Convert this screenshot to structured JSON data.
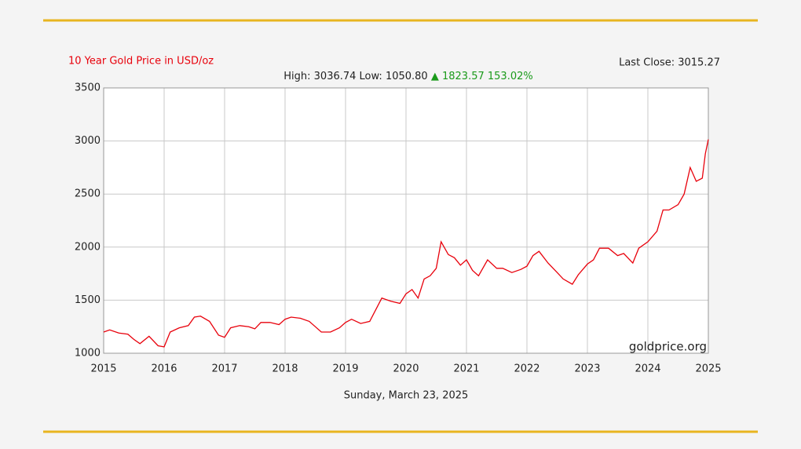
{
  "chart_data": {
    "type": "line",
    "title": "10 Year Gold Price in USD/oz",
    "subtitle": "High: 3036.74 Low: 1050.80",
    "change": "▲ 1823.57 153.02%",
    "last_close": "Last Close: 3015.27",
    "watermark": "goldprice.org",
    "date": "Sunday, March 23, 2025",
    "color": "#e8000b",
    "grid": true,
    "xlim": [
      2015,
      2025
    ],
    "xticks": [
      2015,
      2016,
      2017,
      2018,
      2019,
      2020,
      2021,
      2022,
      2023,
      2024,
      2025
    ],
    "ylim": [
      1000,
      3500
    ],
    "yticks": [
      1000,
      1500,
      2000,
      2500,
      3000,
      3500
    ],
    "x": [
      2015.0,
      2015.1,
      2015.25,
      2015.4,
      2015.5,
      2015.6,
      2015.75,
      2015.9,
      2016.0,
      2016.1,
      2016.25,
      2016.4,
      2016.5,
      2016.6,
      2016.75,
      2016.9,
      2017.0,
      2017.1,
      2017.25,
      2017.4,
      2017.5,
      2017.6,
      2017.75,
      2017.9,
      2018.0,
      2018.1,
      2018.25,
      2018.4,
      2018.5,
      2018.6,
      2018.75,
      2018.9,
      2019.0,
      2019.1,
      2019.25,
      2019.4,
      2019.5,
      2019.6,
      2019.75,
      2019.9,
      2020.0,
      2020.1,
      2020.2,
      2020.3,
      2020.4,
      2020.5,
      2020.58,
      2020.7,
      2020.8,
      2020.9,
      2021.0,
      2021.1,
      2021.2,
      2021.35,
      2021.5,
      2021.6,
      2021.75,
      2021.9,
      2022.0,
      2022.1,
      2022.2,
      2022.35,
      2022.5,
      2022.6,
      2022.75,
      2022.85,
      2023.0,
      2023.1,
      2023.2,
      2023.35,
      2023.5,
      2023.6,
      2023.75,
      2023.85,
      2024.0,
      2024.15,
      2024.25,
      2024.35,
      2024.5,
      2024.6,
      2024.7,
      2024.8,
      2024.9,
      2024.95,
      2025.0
    ],
    "values": [
      1200,
      1220,
      1190,
      1180,
      1130,
      1090,
      1160,
      1070,
      1060,
      1200,
      1240,
      1260,
      1340,
      1350,
      1300,
      1170,
      1150,
      1240,
      1260,
      1250,
      1230,
      1290,
      1290,
      1270,
      1320,
      1340,
      1330,
      1300,
      1250,
      1200,
      1200,
      1240,
      1290,
      1320,
      1280,
      1300,
      1410,
      1520,
      1490,
      1470,
      1560,
      1600,
      1520,
      1700,
      1730,
      1800,
      2050,
      1930,
      1900,
      1830,
      1880,
      1780,
      1730,
      1880,
      1800,
      1800,
      1760,
      1790,
      1820,
      1920,
      1960,
      1850,
      1760,
      1700,
      1650,
      1740,
      1840,
      1880,
      1990,
      1990,
      1920,
      1940,
      1850,
      1990,
      2050,
      2150,
      2350,
      2350,
      2400,
      2500,
      2750,
      2620,
      2650,
      2880,
      3015
    ]
  }
}
